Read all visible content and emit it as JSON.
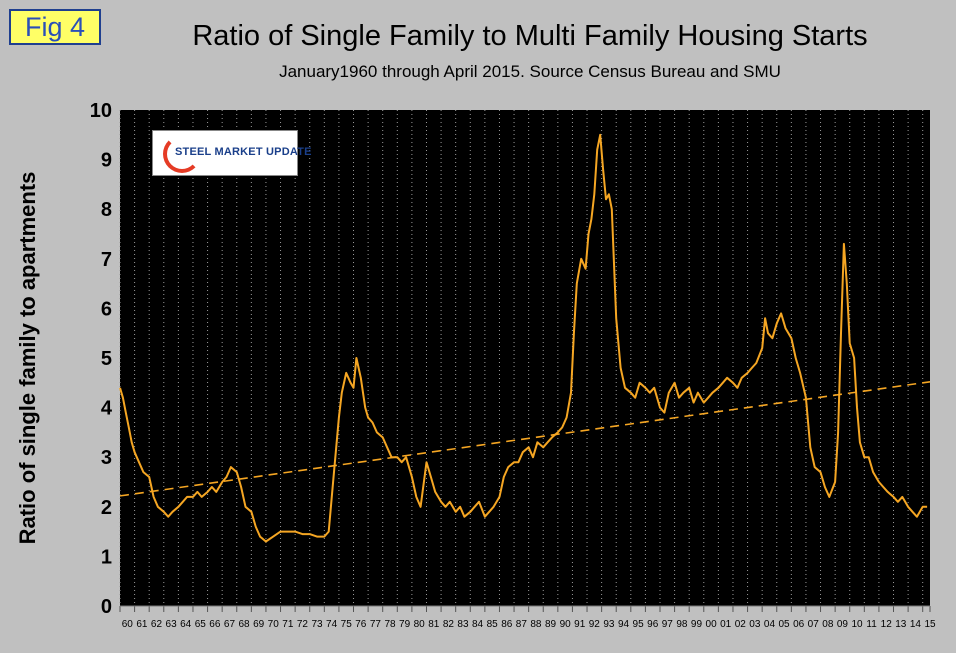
{
  "fig_label": "Fig 4",
  "logo_text": "STEEL MARKET UPDATE",
  "chart_data": {
    "type": "line",
    "title": "Ratio of Single Family to Multi Family Housing Starts",
    "subtitle": "January1960 through April 2015. Source Census Bureau and SMU",
    "ylabel": "Ratio of single family to apartments",
    "xlabel": "",
    "ylim": [
      0,
      10
    ],
    "xlim": [
      1960,
      2015.5
    ],
    "yticks": [
      0,
      1,
      2,
      3,
      4,
      5,
      6,
      7,
      8,
      9,
      10
    ],
    "xtick_labels": [
      "60",
      "61",
      "62",
      "63",
      "64",
      "65",
      "66",
      "67",
      "68",
      "69",
      "70",
      "71",
      "72",
      "73",
      "74",
      "75",
      "76",
      "77",
      "78",
      "79",
      "80",
      "81",
      "82",
      "83",
      "84",
      "85",
      "86",
      "87",
      "88",
      "89",
      "90",
      "91",
      "92",
      "93",
      "94",
      "95",
      "96",
      "97",
      "98",
      "99",
      "00",
      "01",
      "02",
      "03",
      "04",
      "05",
      "06",
      "07",
      "08",
      "09",
      "10",
      "11",
      "12",
      "13",
      "14",
      "15"
    ],
    "grid": "vertical dotted gridlines per year",
    "legend": "none",
    "colors": {
      "series": "#f5a623",
      "trend": "#f5a623",
      "plot_bg": "#000000",
      "page_bg": "#c0c0c0"
    },
    "series": [
      {
        "x": [
          1960.0,
          1960.2,
          1960.4,
          1960.6,
          1960.8,
          1961.0,
          1961.3,
          1961.6,
          1962.0,
          1962.3,
          1962.6,
          1963.0,
          1963.3,
          1963.6,
          1964.0,
          1964.3,
          1964.6,
          1965.0,
          1965.3,
          1965.6,
          1966.0,
          1966.3,
          1966.6,
          1967.0,
          1967.3,
          1967.6,
          1968.0,
          1968.3,
          1968.6,
          1969.0,
          1969.3,
          1969.6,
          1970.0,
          1970.5,
          1971.0,
          1971.5,
          1972.0,
          1972.5,
          1973.0,
          1973.5,
          1974.0,
          1974.3,
          1974.6,
          1975.0,
          1975.2,
          1975.5,
          1975.8,
          1976.0,
          1976.2,
          1976.5,
          1976.8,
          1977.0,
          1977.3,
          1977.6,
          1978.0,
          1978.3,
          1978.6,
          1979.0,
          1979.3,
          1979.6,
          1980.0,
          1980.3,
          1980.6,
          1981.0,
          1981.3,
          1981.6,
          1982.0,
          1982.3,
          1982.6,
          1983.0,
          1983.3,
          1983.6,
          1984.0,
          1984.3,
          1984.6,
          1985.0,
          1985.3,
          1985.6,
          1986.0,
          1986.3,
          1986.6,
          1987.0,
          1987.3,
          1987.6,
          1988.0,
          1988.3,
          1988.6,
          1989.0,
          1989.3,
          1989.6,
          1990.0,
          1990.3,
          1990.6,
          1990.9,
          1991.1,
          1991.3,
          1991.6,
          1991.9,
          1992.1,
          1992.3,
          1992.5,
          1992.7,
          1992.9,
          1993.1,
          1993.3,
          1993.5,
          1993.7,
          1994.0,
          1994.3,
          1994.6,
          1995.0,
          1995.3,
          1995.6,
          1996.0,
          1996.3,
          1996.6,
          1997.0,
          1997.3,
          1997.6,
          1998.0,
          1998.3,
          1998.6,
          1999.0,
          1999.3,
          1999.6,
          2000.0,
          2000.3,
          2000.6,
          2001.0,
          2001.3,
          2001.6,
          2002.0,
          2002.3,
          2002.6,
          2003.0,
          2003.3,
          2003.6,
          2004.0,
          2004.2,
          2004.4,
          2004.7,
          2005.0,
          2005.3,
          2005.6,
          2006.0,
          2006.3,
          2006.6,
          2007.0,
          2007.3,
          2007.6,
          2008.0,
          2008.3,
          2008.6,
          2009.0,
          2009.2,
          2009.4,
          2009.6,
          2009.8,
          2010.0,
          2010.3,
          2010.5,
          2010.7,
          2011.0,
          2011.3,
          2011.6,
          2012.0,
          2012.3,
          2012.6,
          2013.0,
          2013.3,
          2013.6,
          2014.0,
          2014.3,
          2014.6,
          2015.0,
          2015.3
        ],
        "y": [
          4.4,
          4.2,
          3.9,
          3.6,
          3.3,
          3.1,
          2.9,
          2.7,
          2.6,
          2.2,
          2.0,
          1.9,
          1.8,
          1.9,
          2.0,
          2.1,
          2.2,
          2.2,
          2.3,
          2.2,
          2.3,
          2.4,
          2.3,
          2.5,
          2.6,
          2.8,
          2.7,
          2.4,
          2.0,
          1.9,
          1.6,
          1.4,
          1.3,
          1.4,
          1.5,
          1.5,
          1.5,
          1.45,
          1.45,
          1.4,
          1.4,
          1.5,
          2.5,
          3.8,
          4.3,
          4.7,
          4.5,
          4.4,
          5.0,
          4.6,
          4.0,
          3.8,
          3.7,
          3.5,
          3.4,
          3.2,
          3.0,
          3.0,
          2.9,
          3.0,
          2.6,
          2.2,
          2.0,
          2.9,
          2.6,
          2.3,
          2.1,
          2.0,
          2.1,
          1.9,
          2.0,
          1.8,
          1.9,
          2.0,
          2.1,
          1.8,
          1.9,
          2.0,
          2.2,
          2.6,
          2.8,
          2.9,
          2.9,
          3.1,
          3.2,
          3.0,
          3.3,
          3.2,
          3.3,
          3.4,
          3.5,
          3.6,
          3.8,
          4.3,
          5.5,
          6.5,
          7.0,
          6.8,
          7.5,
          7.8,
          8.3,
          9.2,
          9.5,
          8.8,
          8.2,
          8.3,
          8.0,
          5.8,
          4.8,
          4.4,
          4.3,
          4.2,
          4.5,
          4.4,
          4.3,
          4.4,
          4.0,
          3.9,
          4.3,
          4.5,
          4.2,
          4.3,
          4.4,
          4.1,
          4.3,
          4.1,
          4.2,
          4.3,
          4.4,
          4.5,
          4.6,
          4.5,
          4.4,
          4.6,
          4.7,
          4.8,
          4.9,
          5.2,
          5.8,
          5.5,
          5.4,
          5.7,
          5.9,
          5.6,
          5.4,
          5.0,
          4.7,
          4.2,
          3.2,
          2.8,
          2.7,
          2.4,
          2.2,
          2.5,
          3.5,
          5.5,
          7.3,
          6.5,
          5.3,
          5.0,
          4.0,
          3.3,
          3.0,
          3.0,
          2.7,
          2.5,
          2.4,
          2.3,
          2.2,
          2.1,
          2.2,
          2.0,
          1.9,
          1.8,
          2.0,
          2.0
        ]
      }
    ],
    "trendline": {
      "x": [
        1960,
        2015.5
      ],
      "y": [
        2.22,
        4.52
      ]
    }
  }
}
